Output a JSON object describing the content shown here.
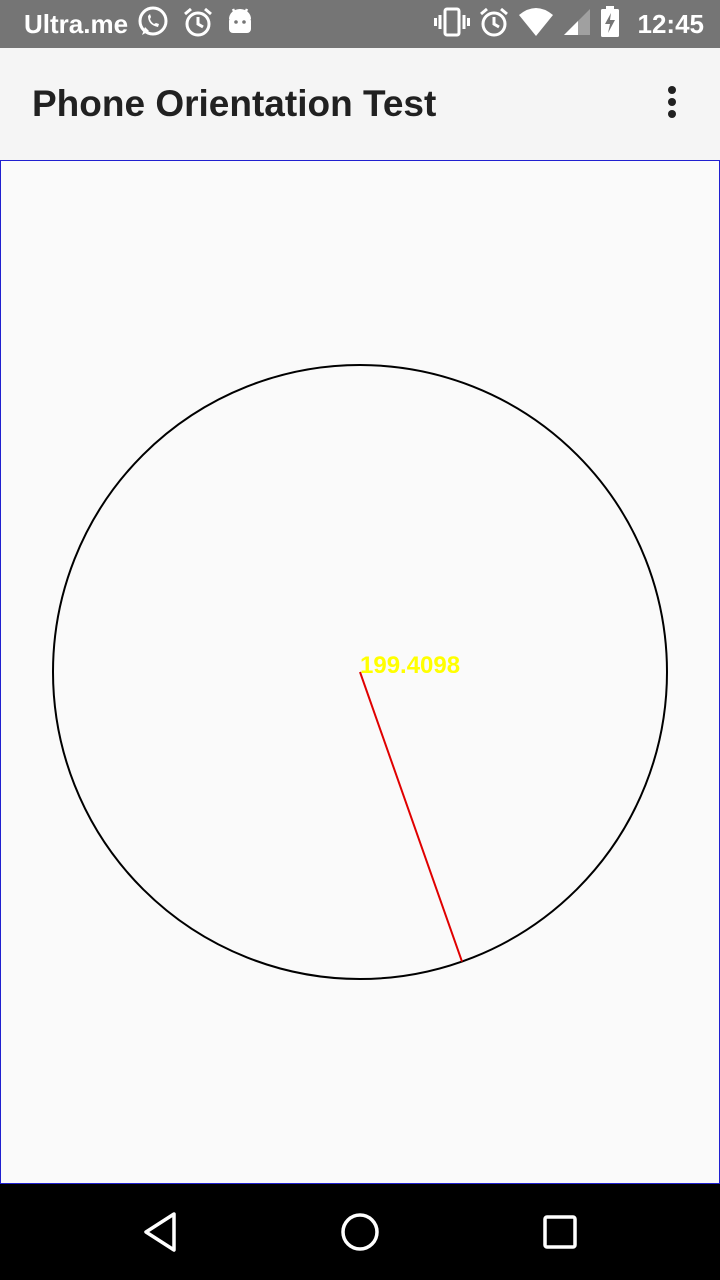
{
  "status_bar": {
    "carrier": "Ultra.me",
    "time": "12:45",
    "left_icons": [
      "whatsapp-icon",
      "alarm-icon",
      "android-icon"
    ],
    "right_icons": [
      "vibrate-icon",
      "alarm-icon",
      "wifi-icon",
      "signal-icon",
      "battery-charging-icon"
    ]
  },
  "app_bar": {
    "title": "Phone Orientation Test",
    "menu_icon": "more-vert-icon"
  },
  "compass": {
    "heading": "199.4098",
    "heading_degrees": 199.4098,
    "needle_color": "#e00000",
    "label_color": "#ffff00",
    "circle_color": "#000000"
  },
  "nav_bar": {
    "buttons": [
      "back-icon",
      "home-icon",
      "recents-icon"
    ]
  }
}
